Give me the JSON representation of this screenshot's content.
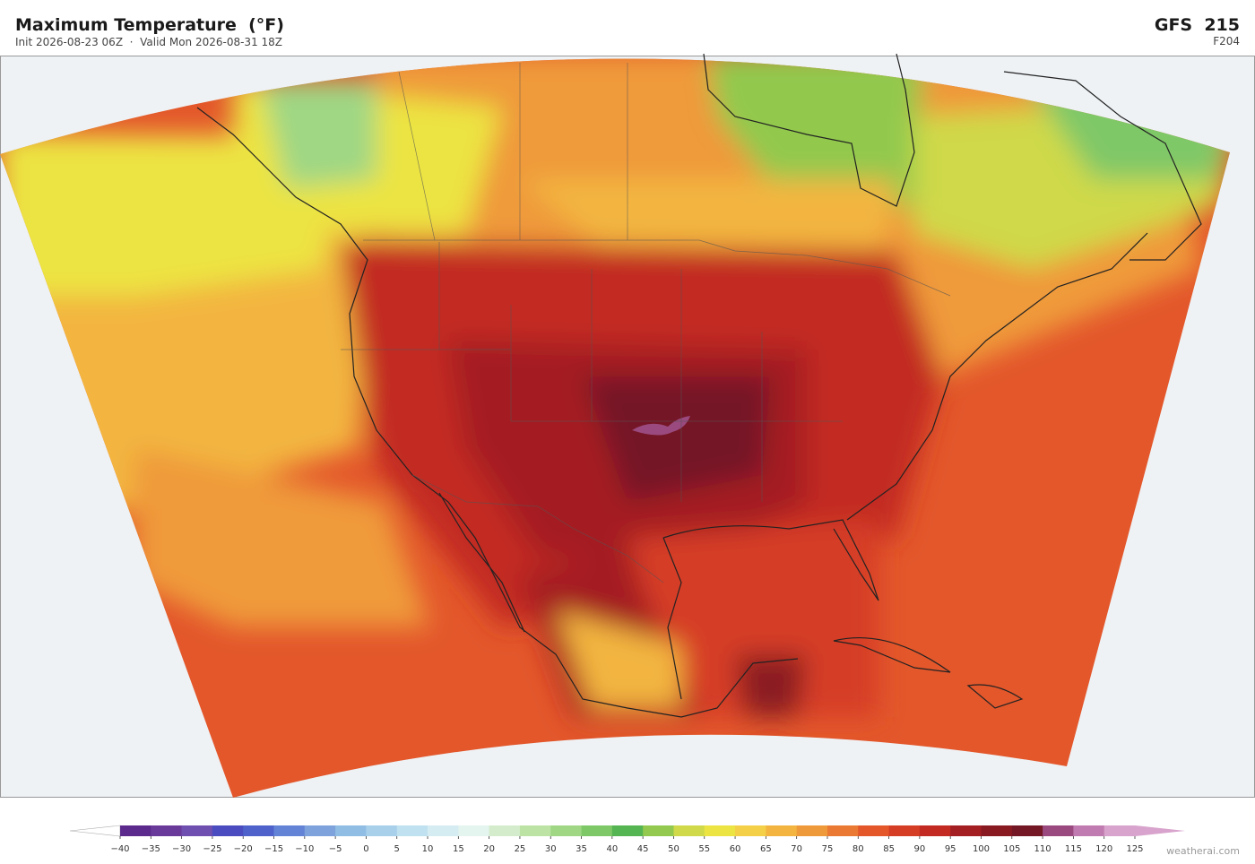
{
  "header": {
    "title": "Maximum Temperature  (°F)",
    "subtitle": "Init 2026-08-23 06Z  ·  Valid Mon 2026-08-31 18Z",
    "model": "GFS  215",
    "forecast": "F204"
  },
  "legend": {
    "ticks": [
      {
        "value": -40,
        "label": "−40"
      },
      {
        "value": -35,
        "label": "−35"
      },
      {
        "value": -30,
        "label": "−30"
      },
      {
        "value": -25,
        "label": "−25"
      },
      {
        "value": -20,
        "label": "−20"
      },
      {
        "value": -15,
        "label": "−15"
      },
      {
        "value": -10,
        "label": "−10"
      },
      {
        "value": -5,
        "label": "−5"
      },
      0,
      5,
      10,
      15,
      20,
      25,
      30,
      35,
      40,
      45,
      50,
      55,
      60,
      65,
      70,
      75,
      80,
      85,
      90,
      95,
      100,
      105,
      110,
      115,
      120,
      125
    ],
    "colors": [
      "#5b2a8c",
      "#6a3a9a",
      "#6f4fb0",
      "#4a4cbf",
      "#4f62cc",
      "#6384d6",
      "#7ea3dc",
      "#90bde3",
      "#a8d0ea",
      "#c0e1ef",
      "#d4ecf2",
      "#e4f4ee",
      "#d4eccb",
      "#bde3a4",
      "#9fd784",
      "#7fc868",
      "#55b552",
      "#92c94e",
      "#cfd94a",
      "#ece442",
      "#f4cf48",
      "#f3b540",
      "#ef9a3a",
      "#ea7a33",
      "#e3572b",
      "#d63d25",
      "#c22a22",
      "#a41f22",
      "#8a1a22",
      "#741826",
      "#9a4a7e",
      "#c07bb0",
      "#d8a3cc"
    ],
    "extend_colors": [
      "#ffffff",
      "#d8a3cc"
    ]
  },
  "footer": {
    "credit": "weatherai.com"
  }
}
